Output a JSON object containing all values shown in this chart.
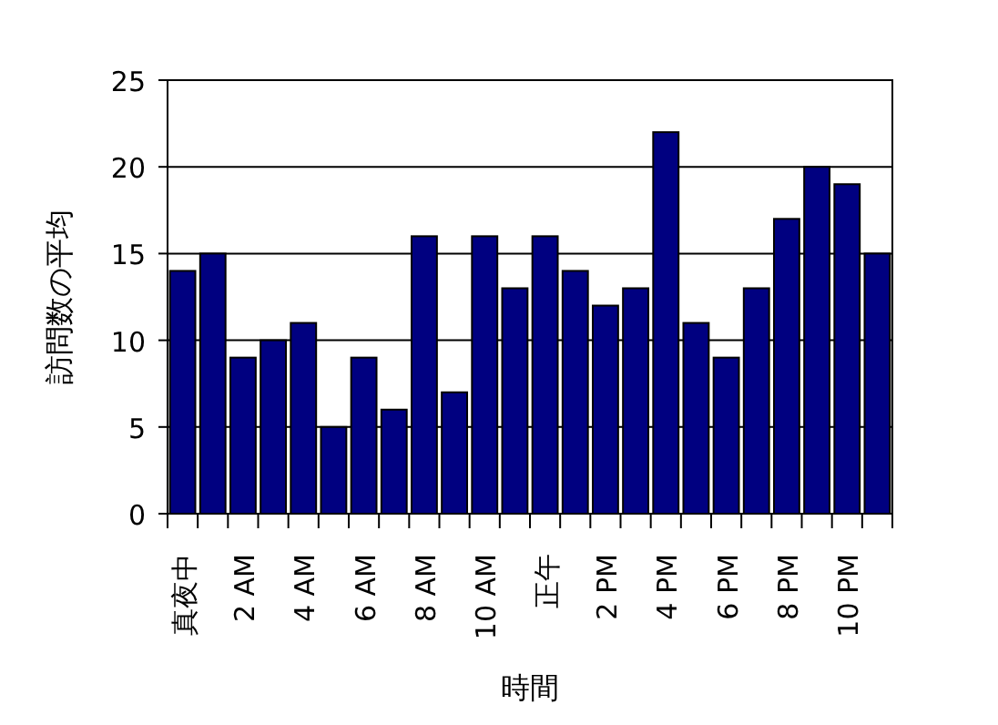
{
  "chart_data": {
    "type": "bar",
    "xlabel": "時間",
    "ylabel": "訪問数の平均",
    "categories": [
      "真夜中",
      null,
      "2 AM",
      null,
      "4 AM",
      null,
      "6 AM",
      null,
      "8 AM",
      null,
      "10 AM",
      null,
      "正午",
      null,
      "2 PM",
      null,
      "4 PM",
      null,
      "6 PM",
      null,
      "8 PM",
      null,
      "10 PM",
      null
    ],
    "values": [
      14,
      15,
      9,
      10,
      11,
      5,
      9,
      6,
      16,
      7,
      16,
      13,
      16,
      14,
      12,
      13,
      22,
      11,
      9,
      13,
      17,
      20,
      19,
      15
    ],
    "color": "#000080",
    "ylim": [
      0,
      25
    ],
    "yticks": [
      0,
      5,
      10,
      15,
      20,
      25
    ],
    "grid": "y"
  }
}
